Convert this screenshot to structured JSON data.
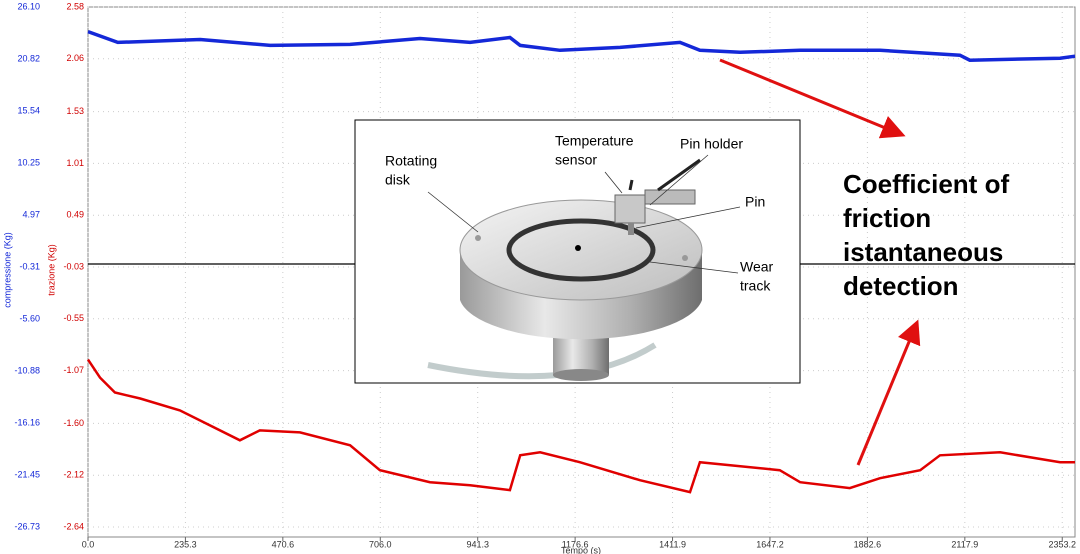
{
  "chart_data": {
    "type": "line",
    "x_label": "Tempo (s)",
    "y_label": "compressione (Kg)",
    "y2_label": "trazione (Kg)",
    "xlim": [
      0,
      2384
    ],
    "xticks": [
      {
        "value": 0,
        "label": "0.0"
      },
      235.3,
      470.6,
      {
        "value": 706,
        "label": "706.0"
      },
      941.3,
      1176.6,
      1411.9,
      1647.2,
      1882.6,
      2117.9,
      2353.2
    ],
    "ylim": [
      -26.73,
      26.1
    ],
    "yticks": [
      {
        "value": 26.1,
        "label": "26.10"
      },
      20.82,
      15.54,
      10.25,
      4.97,
      -0.31,
      {
        "value": -5.6,
        "label": "-5.60"
      },
      -10.88,
      -16.16,
      -21.45,
      -26.73
    ],
    "y2lim": [
      -2.64,
      2.58
    ],
    "y2ticks": [
      2.58,
      2.06,
      1.53,
      1.01,
      0.49,
      -0.03,
      -0.55,
      -1.07,
      {
        "value": -1.6,
        "label": "-1.60"
      },
      -2.12,
      -2.64
    ],
    "grid": true,
    "series": [
      {
        "color": "#1428d8",
        "x": [
          0,
          72,
          271,
          440,
          633,
          802,
          923,
          1019,
          1044,
          1140,
          1285,
          1430,
          1478,
          1575,
          1720,
          1913,
          2106,
          2130,
          2348,
          2384
        ],
        "values": [
          23.6,
          22.5,
          22.8,
          22.2,
          22.3,
          22.9,
          22.5,
          23.0,
          22.2,
          21.7,
          22.0,
          22.5,
          21.7,
          21.5,
          21.7,
          21.7,
          21.2,
          20.7,
          20.9,
          21.1
        ]
      },
      {
        "color": "#e00000",
        "axis": "y2",
        "x": [
          0,
          29,
          65,
          126,
          222,
          367,
          415,
          512,
          633,
          705,
          826,
          923,
          1019,
          1044,
          1092,
          1188,
          1333,
          1454,
          1478,
          1671,
          1720,
          1840,
          1913,
          2010,
          2058,
          2203,
          2348,
          2384
        ],
        "values": [
          -0.96,
          -1.14,
          -1.29,
          -1.35,
          -1.47,
          -1.77,
          -1.67,
          -1.69,
          -1.82,
          -2.07,
          -2.19,
          -2.22,
          -2.27,
          -1.92,
          -1.89,
          -1.99,
          -2.17,
          -2.29,
          -1.99,
          -2.07,
          -2.19,
          -2.25,
          -2.15,
          -2.07,
          -1.92,
          -1.89,
          -1.99,
          -1.99
        ]
      }
    ]
  },
  "annotation": [
    "Coefficient of",
    "friction",
    "istantaneous",
    "detection"
  ],
  "inset": {
    "labels": [
      [
        "Rotating",
        "disk"
      ],
      [
        "Temperature",
        "sensor"
      ],
      [
        "Pin holder"
      ],
      [
        "Pin"
      ],
      [
        "Wear",
        "track"
      ]
    ]
  }
}
